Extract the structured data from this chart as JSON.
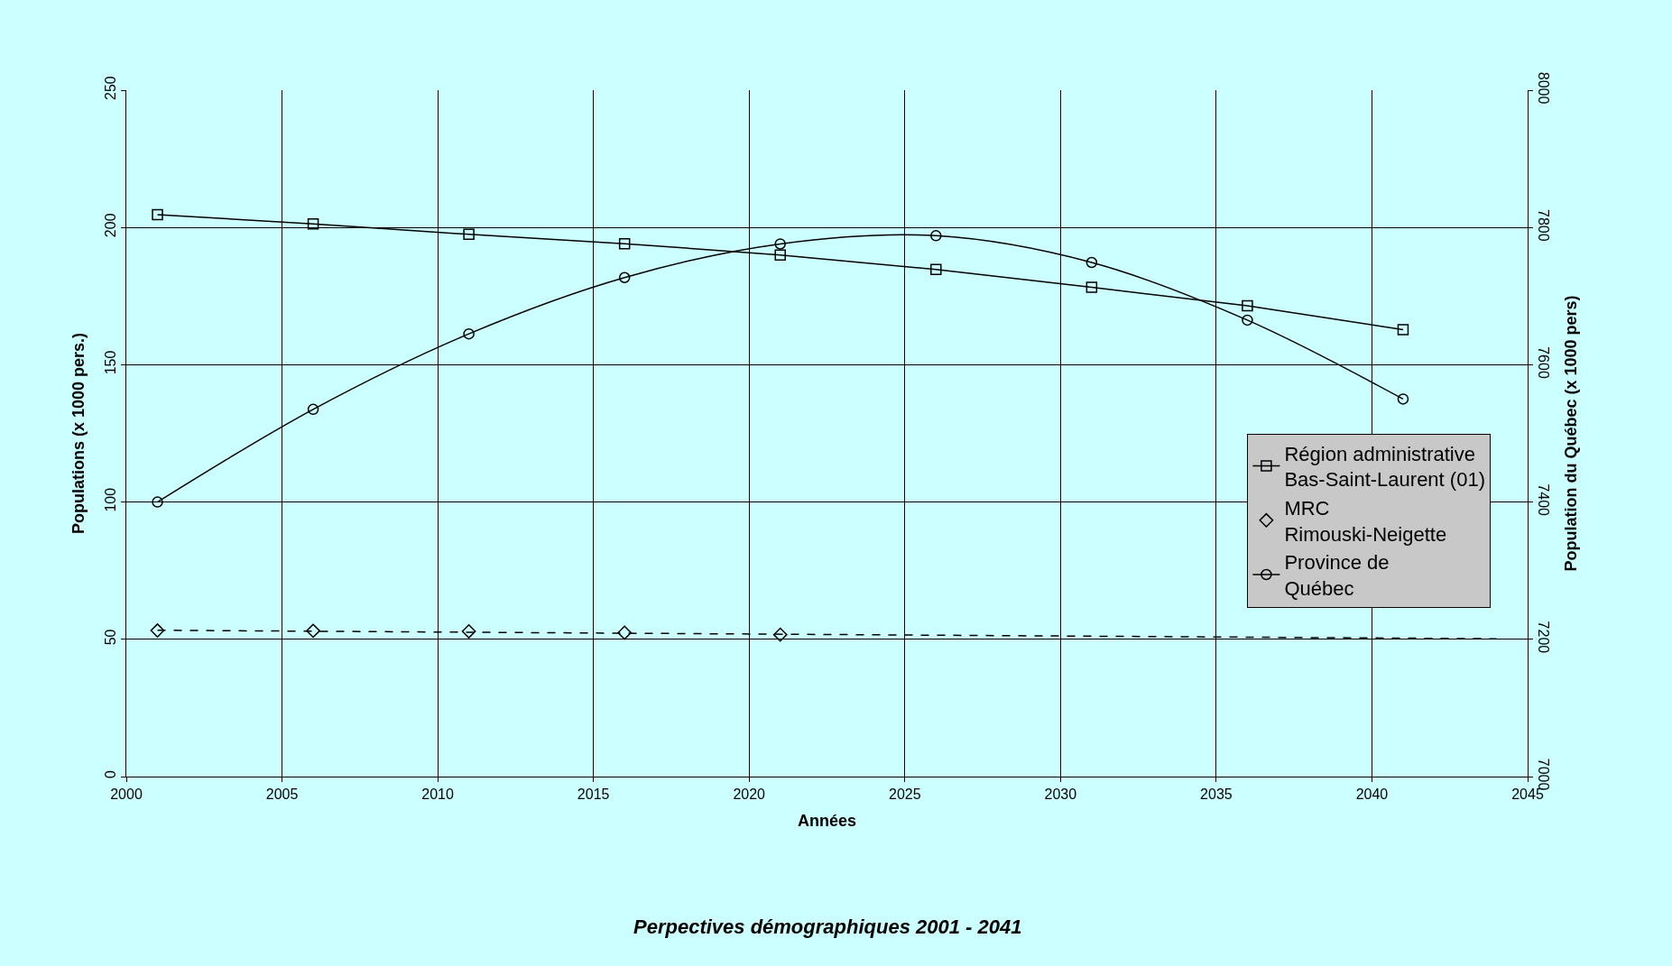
{
  "chart_data": {
    "type": "line",
    "title": "Perpectives démographiques 2001 - 2041",
    "xlabel": "Années",
    "ylabel": "Populations (x 1000 pers.)",
    "y2label": "Population du Québec (x 1000 pers)",
    "xlim": [
      2000,
      2045
    ],
    "xticks": [
      2000,
      2005,
      2010,
      2015,
      2020,
      2025,
      2030,
      2035,
      2040,
      2045
    ],
    "ylim": [
      0,
      250
    ],
    "yticks": [
      0,
      50,
      100,
      150,
      200,
      250
    ],
    "y2lim": [
      7000,
      8000
    ],
    "y2ticks": [
      7000,
      7200,
      7400,
      7600,
      7800,
      8000
    ],
    "grid": true,
    "legend": "right",
    "series": [
      {
        "name": "Région administrative\nBas-Saint-Laurent (01)",
        "color": "#000000",
        "marker": "square",
        "line_style": "solid",
        "x": [
          2001,
          2006,
          2011,
          2016,
          2021,
          2026,
          2031,
          2036,
          2041
        ],
        "values": [
          204.7,
          201.3,
          197.5,
          194.1,
          190,
          184.7,
          178.2,
          171.5,
          162.8
        ]
      },
      {
        "name": "MRC\nRimouski-Neigette",
        "type": "scatter",
        "color": "#000000",
        "marker": "diamond",
        "x": [
          2001,
          2006,
          2011,
          2016,
          2021
        ],
        "values": [
          53.2,
          53.1,
          52.9,
          52.4,
          51.7
        ]
      },
      {
        "name": "Province de\nQuébec",
        "color": "#000000",
        "marker": "circle",
        "line_style": "solid",
        "axis": "y2",
        "x": [
          2001,
          2006,
          2011,
          2016,
          2021,
          2026,
          2031,
          2036,
          2041
        ],
        "values": [
          7400,
          7535,
          7645,
          7727,
          7776,
          7788,
          7749,
          7665,
          7550
        ]
      },
      {
        "type": "line",
        "color": "#000000",
        "marker": "none",
        "line_style": "dashed",
        "x": [
          2001,
          2044
        ],
        "values": [
          53.3,
          50.2
        ]
      }
    ]
  }
}
